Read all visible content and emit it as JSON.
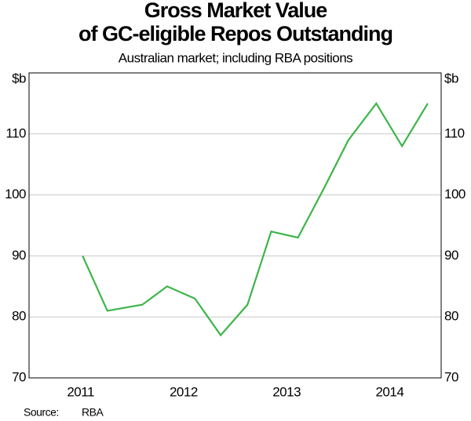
{
  "chart_data": {
    "type": "line",
    "title": [
      "Gross Market Value",
      "of GC-eligible Repos Outstanding"
    ],
    "subtitle": "Australian market; including RBA positions",
    "y_unit": "$b",
    "y2_unit": "$b",
    "x": [
      2011.52,
      2011.76,
      2012.1,
      2012.34,
      2012.61,
      2012.86,
      2013.12,
      2013.35,
      2013.61,
      2013.86,
      2014.1,
      2014.37,
      2014.62,
      2014.87
    ],
    "series": [
      {
        "name": "GC-eligible repos",
        "color": "#3db54a",
        "values": [
          90,
          81,
          82,
          85,
          83,
          77,
          82,
          94,
          93,
          101,
          109,
          115,
          108,
          115
        ]
      }
    ],
    "xlim": [
      2011,
      2015
    ],
    "xticks": [
      {
        "value": 2011.5,
        "label": "2011"
      },
      {
        "value": 2012.5,
        "label": "2012"
      },
      {
        "value": 2013.5,
        "label": "2013"
      },
      {
        "value": 2014.5,
        "label": "2014"
      }
    ],
    "ylim": [
      70,
      120
    ],
    "yticks": [
      70,
      80,
      90,
      100,
      110
    ],
    "y2lim": [
      70,
      120
    ],
    "y2ticks": [
      70,
      80,
      90,
      100,
      110
    ],
    "grid": true,
    "source_label": "Source:",
    "source": "RBA"
  }
}
